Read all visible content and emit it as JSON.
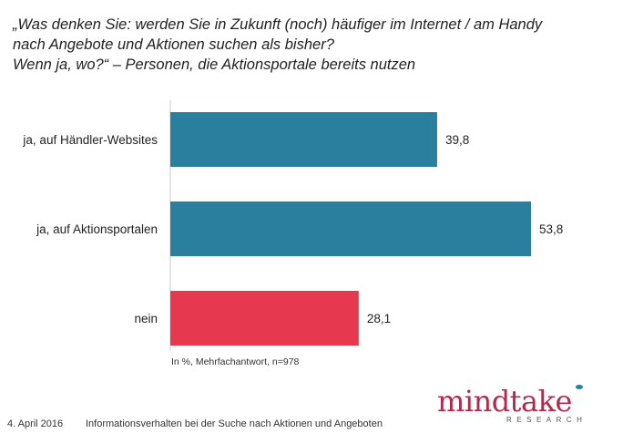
{
  "title": {
    "line1": "„Was denken Sie: werden Sie in Zukunft (noch) häufiger im Internet / am Handy",
    "line2": "nach Angebote und Aktionen suchen als  bisher?",
    "line3": "Wenn ja, wo?“ – Personen, die Aktionsportale bereits nutzen"
  },
  "chart_data": {
    "type": "bar",
    "orientation": "horizontal",
    "categories": [
      "ja, auf Händler-Websites",
      "ja, auf Aktionsportalen",
      "nein"
    ],
    "values": [
      39.8,
      53.8,
      28.1
    ],
    "value_labels": [
      "39,8",
      "53,8",
      "28,1"
    ],
    "colors": [
      "#2a7f9e",
      "#2a7f9e",
      "#e63950"
    ],
    "note": "In %, Mehrfachantwort, n=978",
    "axis_min": 0,
    "axis_max": 53.8,
    "grid": false,
    "legend": "none"
  },
  "footer": {
    "date": "4. April 2016",
    "description": "Informationsverhalten bei der Suche nach Aktionen und Angeboten"
  },
  "logo": {
    "word": "mindtake",
    "sub": "RESEARCH",
    "color": "#b3294a",
    "accent": "#2b7fa0"
  }
}
